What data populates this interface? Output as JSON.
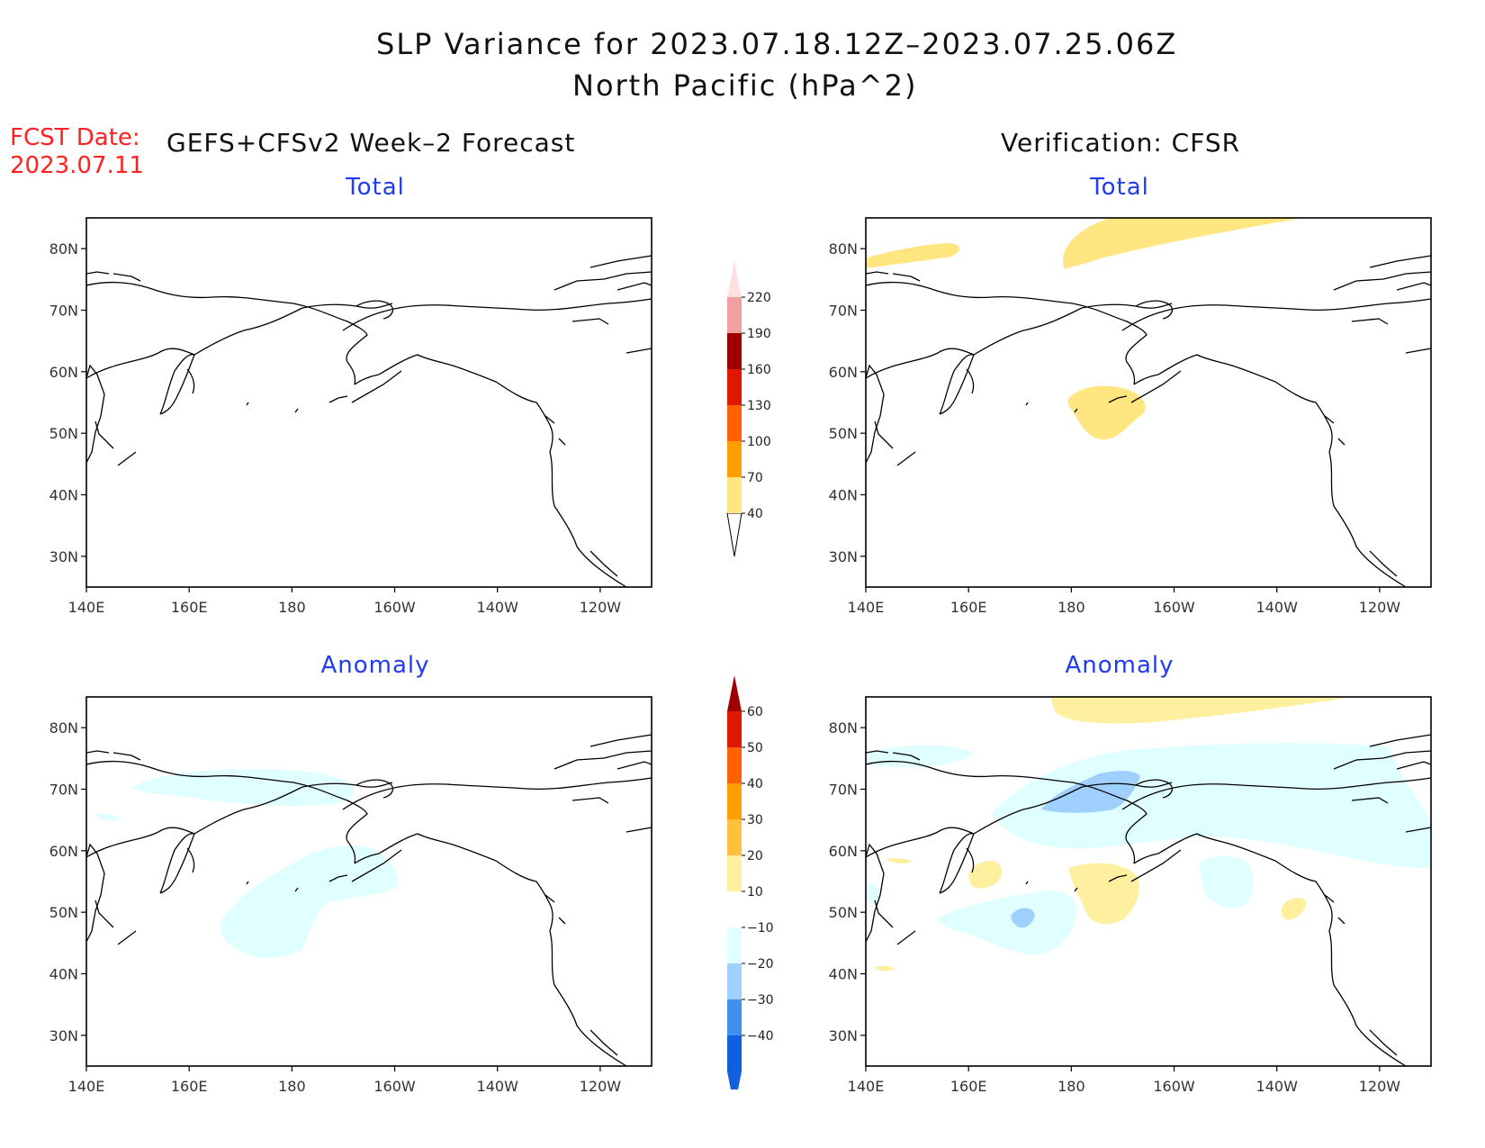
{
  "title": {
    "line1": "SLP Variance for 2023.07.18.12Z–2023.07.25.06Z",
    "line2": "North Pacific (hPa^2)"
  },
  "fcst_date": {
    "label": "FCST Date:",
    "value": "2023.07.11"
  },
  "left_header": "GEFS+CFSv2 Week–2 Forecast",
  "right_header": "Verification: CFSR",
  "panels": {
    "fcst_total": "Total",
    "verif_total": "Total",
    "fcst_anomaly": "Anomaly",
    "verif_anomaly": "Anomaly"
  },
  "axes": {
    "lon_ticks": [
      "140E",
      "160E",
      "180",
      "160W",
      "140W",
      "120W"
    ],
    "lat_ticks": [
      "80N",
      "70N",
      "60N",
      "50N",
      "40N",
      "30N"
    ]
  },
  "total_colorbar": {
    "labels": [
      "40",
      "70",
      "100",
      "130",
      "160",
      "190",
      "220"
    ],
    "colors": [
      "#ffe680",
      "#ffa000",
      "#ff6000",
      "#e01800",
      "#a00000",
      "#f0a0a0",
      "#ffe0e0"
    ]
  },
  "anomaly_colorbar": {
    "labels": [
      "60",
      "50",
      "40",
      "30",
      "20",
      "10",
      "−10",
      "−20",
      "−30",
      "−40"
    ],
    "colors": {
      "top": "#a00000",
      "bins": [
        "#dd1800",
        "#ff6000",
        "#ffa000",
        "#ffc040",
        "#fff0a0",
        "#ffffff",
        "#e0ffff",
        "#a0d0ff",
        "#4090f0",
        "#1060e0"
      ],
      "bottom": "#1060e0"
    }
  },
  "colors": {
    "pos_light": "#fff0a0",
    "neg_light": "#e0ffff",
    "neg_mid": "#a0d0ff"
  }
}
